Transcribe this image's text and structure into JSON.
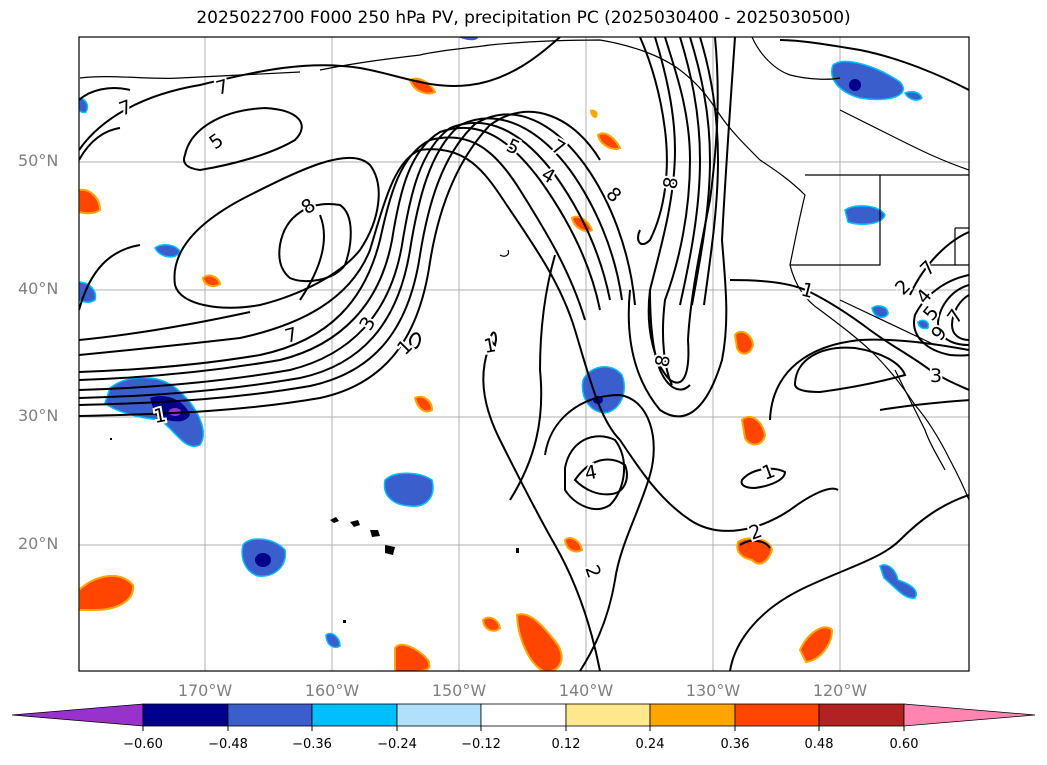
{
  "title": "2025022700 F000 250 hPa PV, precipitation PC (2025030400 - 2025030500)",
  "lat_labels": [
    "50°N",
    "40°N",
    "30°N",
    "20°N"
  ],
  "lon_labels": [
    "170°W",
    "160°W",
    "150°W",
    "140°W",
    "130°W",
    "120°W"
  ],
  "contour_labels": [
    "7",
    "7",
    "5",
    "8",
    "3",
    "7",
    "1",
    "1",
    "1",
    "5",
    "7",
    "4",
    "8",
    "8",
    "8",
    "4",
    "2",
    "2",
    "1",
    "1",
    "3",
    "2",
    "4",
    "5",
    "7",
    "7",
    "9"
  ],
  "colorbar": {
    "ticks": [
      "−0.60",
      "−0.48",
      "−0.36",
      "−0.24",
      "−0.12",
      "0.12",
      "0.24",
      "0.36",
      "0.48",
      "0.60"
    ],
    "colors": [
      "#9932cc",
      "#00008b",
      "#3a5fcd",
      "#00bfff",
      "#b0e0fa",
      "#ffffff",
      "#ffe88c",
      "#ffa500",
      "#ff4500",
      "#b22222",
      "#ff85b0"
    ]
  },
  "precip_colors": {
    "neg1": "#3a5fcd",
    "neg2": "#00008b",
    "neg3": "#9932cc",
    "cyan": "#00bfff",
    "pos1": "#ff4500",
    "pos2": "#ffa500",
    "pos3": "#ffe88c"
  }
}
